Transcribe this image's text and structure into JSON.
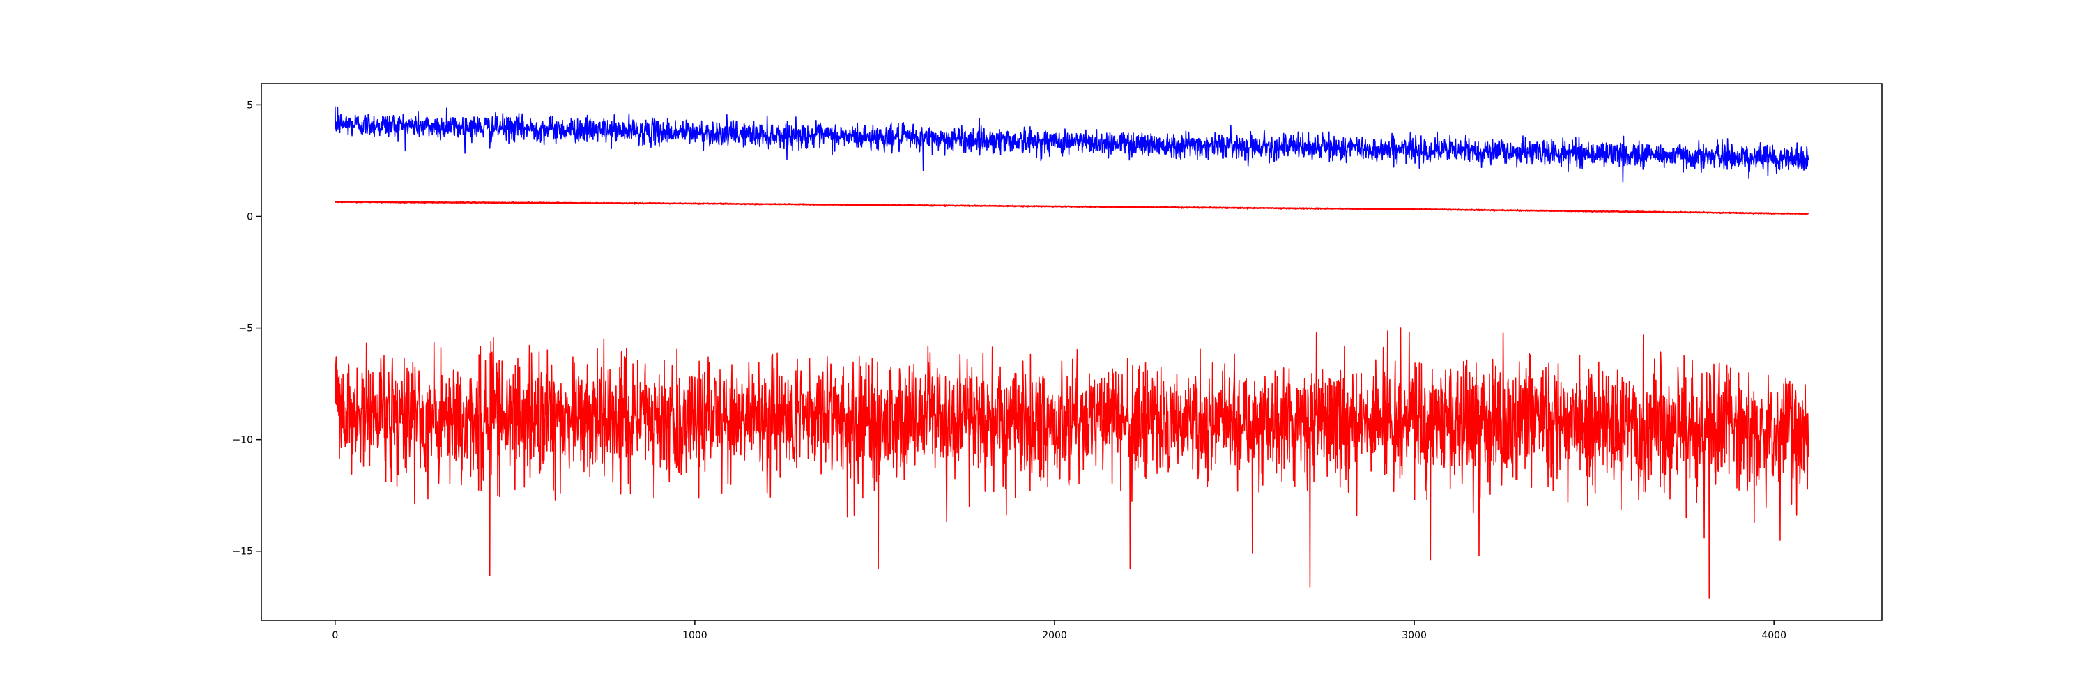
{
  "chart_data": {
    "type": "line",
    "title": "",
    "xlabel": "",
    "ylabel": "",
    "xlim": [
      -205,
      4300
    ],
    "ylim": [
      -18.1,
      5.95
    ],
    "grid": false,
    "legend": "none",
    "x_ticks": [
      0,
      1000,
      2000,
      3000,
      4000
    ],
    "x_tick_labels": [
      "0",
      "1000",
      "2000",
      "3000",
      "4000"
    ],
    "y_ticks": [
      5,
      0,
      -5,
      -10,
      -15
    ],
    "y_tick_labels": [
      "5",
      "0",
      "−5",
      "−10",
      "−15"
    ],
    "series": [
      {
        "color": "#0000ff",
        "style": "noisy",
        "x_start": 0,
        "x_end": 4096,
        "trend": [
          [
            0,
            4.15
          ],
          [
            1000,
            3.75
          ],
          [
            2000,
            3.35
          ],
          [
            3000,
            3.0
          ],
          [
            4096,
            2.6
          ]
        ],
        "noise_sd": 0.28,
        "spikes": [
          [
            7,
            4.9
          ],
          [
            310,
            4.85
          ],
          [
            430,
            3.05
          ],
          [
            1635,
            2.05
          ],
          [
            3580,
            1.55
          ],
          [
            3930,
            1.7
          ]
        ]
      },
      {
        "color": "#ff0000",
        "style": "smooth",
        "x_start": 0,
        "x_end": 4096,
        "trend": [
          [
            0,
            0.65
          ],
          [
            1000,
            0.58
          ],
          [
            2000,
            0.45
          ],
          [
            3000,
            0.32
          ],
          [
            4096,
            0.12
          ]
        ],
        "noise_sd": 0.01,
        "spikes": []
      },
      {
        "color": "#ff0000",
        "style": "noisy",
        "x_start": 0,
        "x_end": 4096,
        "trend": [
          [
            0,
            -8.7
          ],
          [
            1000,
            -9.0
          ],
          [
            2000,
            -9.1
          ],
          [
            3000,
            -9.1
          ],
          [
            4096,
            -9.5
          ]
        ],
        "noise_sd": 1.25,
        "spikes": [
          [
            430,
            -16.1
          ],
          [
            1510,
            -15.8
          ],
          [
            2210,
            -15.8
          ],
          [
            2550,
            -15.1
          ],
          [
            2710,
            -16.6
          ],
          [
            3045,
            -15.4
          ],
          [
            3180,
            -15.2
          ],
          [
            3820,
            -17.1
          ],
          [
            400,
            -6.2
          ],
          [
            1285,
            -6.4
          ],
          [
            2050,
            -6.4
          ],
          [
            3020,
            -6.6
          ],
          [
            3400,
            -6.6
          ]
        ]
      }
    ]
  }
}
